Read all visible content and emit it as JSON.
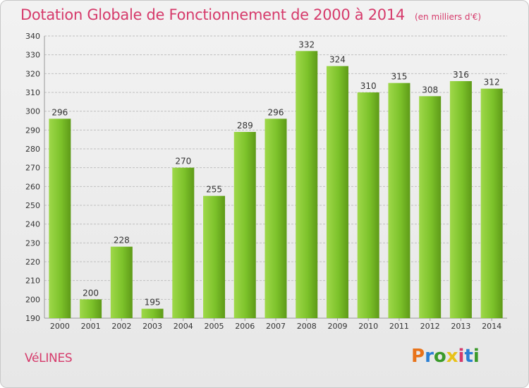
{
  "header": {
    "title": "Dotation Globale de Fonctionnement de 2000 à 2014",
    "unit_note": "(en milliers d'€)"
  },
  "footer": {
    "commune": "VéLINES",
    "brand": "Proxiti",
    "brand_colors": [
      "#e8731a",
      "#2a7fd4",
      "#3a9a2a",
      "#e8c21a",
      "#d63a6b",
      "#2a7fd4",
      "#3a9a2a"
    ]
  },
  "colors": {
    "bar": "#7cc22a",
    "bar_light": "#9fd84a",
    "bar_dark": "#5e9a18",
    "text_accent": "#d63a6b",
    "grid": "#c0c0c0",
    "axis_text": "#333333"
  },
  "chart_data": {
    "type": "bar",
    "categories": [
      "2000",
      "2001",
      "2002",
      "2003",
      "2004",
      "2005",
      "2006",
      "2007",
      "2008",
      "2009",
      "2010",
      "2011",
      "2012",
      "2013",
      "2014"
    ],
    "values": [
      296,
      200,
      228,
      195,
      270,
      255,
      289,
      296,
      332,
      324,
      310,
      315,
      308,
      316,
      312
    ],
    "ylim": [
      190,
      340
    ],
    "ytick_step": 10,
    "grid": true,
    "xlabel": "",
    "ylabel": ""
  }
}
